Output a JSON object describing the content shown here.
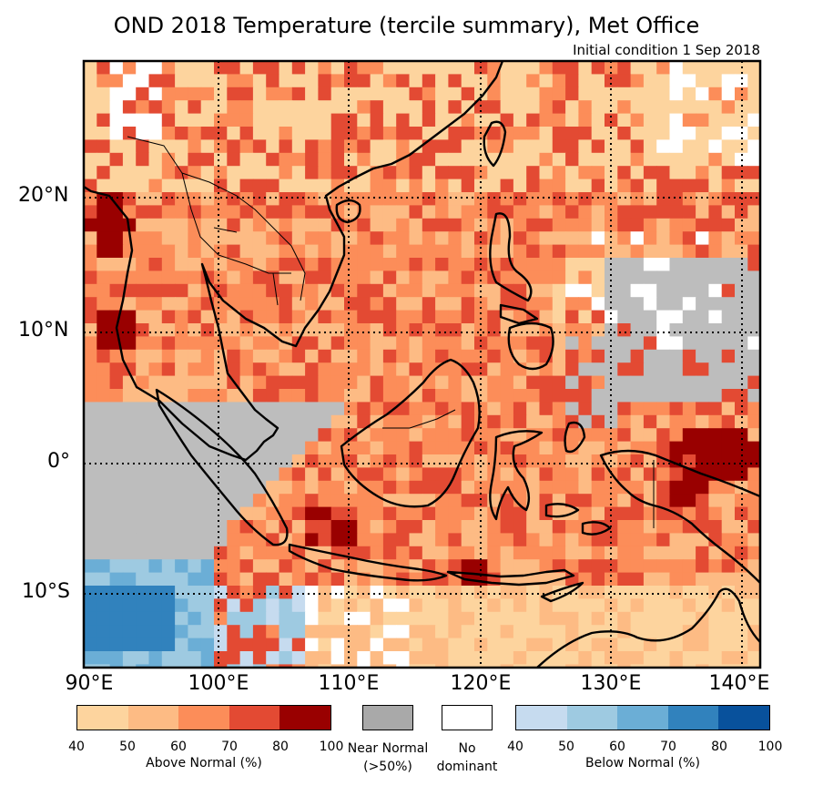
{
  "title": "OND 2018 Temperature (tercile summary), Met Office",
  "subtitle": "Initial condition 1 Sep 2018",
  "lat_labels": [
    "20°N",
    "10°N",
    "0°",
    "10°S"
  ],
  "lon_labels": [
    "90°E",
    "100°E",
    "110°E",
    "120°E",
    "130°E",
    "140°E"
  ],
  "colors": {
    "above": [
      "#fdd49e",
      "#fdbb84",
      "#fc8d59",
      "#e34a33",
      "#990000"
    ],
    "near": "#bdbdbd",
    "no_dominant": "#ffffff",
    "below": [
      "#c6dbef",
      "#9ecae1",
      "#6baed6",
      "#3182bd",
      "#08519c"
    ],
    "land_outline": "#000000"
  },
  "legend": {
    "above": {
      "ticks": [
        "40",
        "50",
        "60",
        "70",
        "80",
        "100"
      ],
      "label": "Above Normal (%)"
    },
    "near": {
      "label_line1": "Near Normal",
      "label_line2": "(>50%)"
    },
    "none": {
      "label_line1": "No",
      "label_line2": "dominant"
    },
    "below": {
      "ticks": [
        "40",
        "50",
        "60",
        "70",
        "80",
        "100"
      ],
      "label": "Below Normal (%)"
    }
  }
}
